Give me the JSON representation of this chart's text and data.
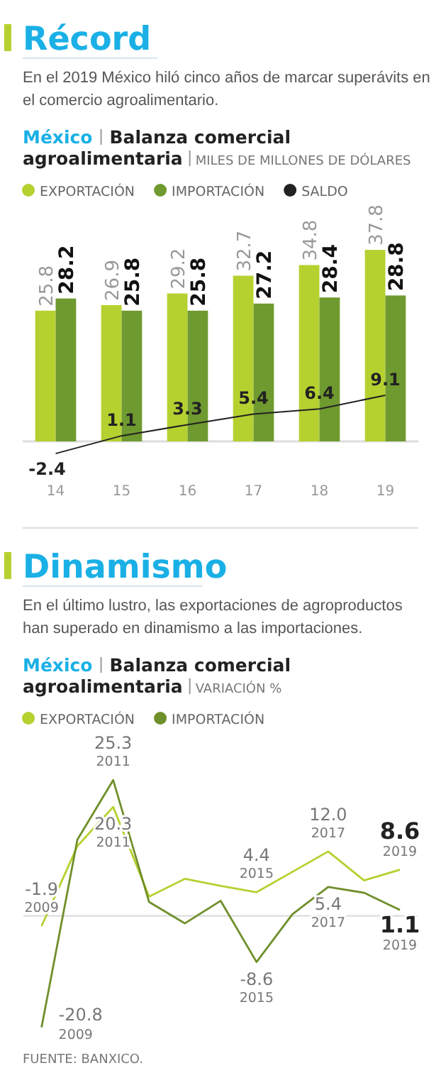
{
  "chart_data": [
    {
      "type": "bar",
      "title": "Récord",
      "subtitle": "En el 2019 México hiló cinco años de marcar superávits en el comercio agroalimentario.",
      "ylabel": "MILES DE MILLONES DE DÓLARES",
      "annotations": [
        "México",
        "Balanza comercial agroalimentaria"
      ],
      "categories": [
        "14",
        "15",
        "16",
        "17",
        "18",
        "19"
      ],
      "series": [
        {
          "name": "EXPORTACIÓN",
          "color": "#b5d130",
          "values": [
            25.8,
            26.9,
            29.2,
            32.7,
            34.8,
            37.8
          ]
        },
        {
          "name": "IMPORTACIÓN",
          "color": "#6f9a2f",
          "values": [
            28.2,
            25.8,
            25.8,
            27.2,
            28.4,
            28.8
          ]
        },
        {
          "name": "SALDO",
          "type": "line",
          "color": "#222222",
          "values": [
            -2.4,
            1.1,
            3.3,
            5.4,
            6.4,
            9.1
          ]
        }
      ],
      "tick_labels": "x",
      "legend": "top",
      "data_labels": true
    },
    {
      "type": "line",
      "title": "Dinamismo",
      "subtitle": "En el último lustro, las exportaciones de agroproductos han superado en dinamismo a las importaciones.",
      "ylabel": "VARIACIÓN %",
      "annotations": [
        "México",
        "Balanza comercial agroalimentaria",
        "FUENTE: BANXICO.",
        "2009",
        "2011",
        "2015",
        "2017",
        "2019",
        "2009",
        "2011",
        "2015",
        "2017",
        "2019"
      ],
      "categories": [
        null,
        null,
        null,
        null,
        null,
        null,
        null,
        null,
        null,
        null,
        null
      ],
      "series": [
        {
          "name": "EXPORTACIÓN",
          "color": "#b5d130",
          "values": [
            -1.9,
            13.0,
            20.3,
            3.6,
            6.9,
            5.6,
            4.4,
            8.2,
            12.0,
            6.6,
            8.6
          ],
          "value_labels": [
            "-1.9",
            null,
            "20.3",
            null,
            null,
            null,
            "4.4",
            null,
            "12.0",
            null,
            "8.6"
          ]
        },
        {
          "name": "IMPORTACIÓN",
          "color": "#6f8f2a",
          "values": [
            -20.8,
            14.2,
            25.3,
            2.6,
            -1.4,
            2.8,
            -8.6,
            0.3,
            5.4,
            4.3,
            1.1
          ],
          "value_labels": [
            "-20.8",
            null,
            "25.3",
            null,
            null,
            null,
            "-8.6",
            null,
            "5.4",
            null,
            "1.1"
          ]
        }
      ],
      "tick_labels": false,
      "legend": "top"
    }
  ]
}
